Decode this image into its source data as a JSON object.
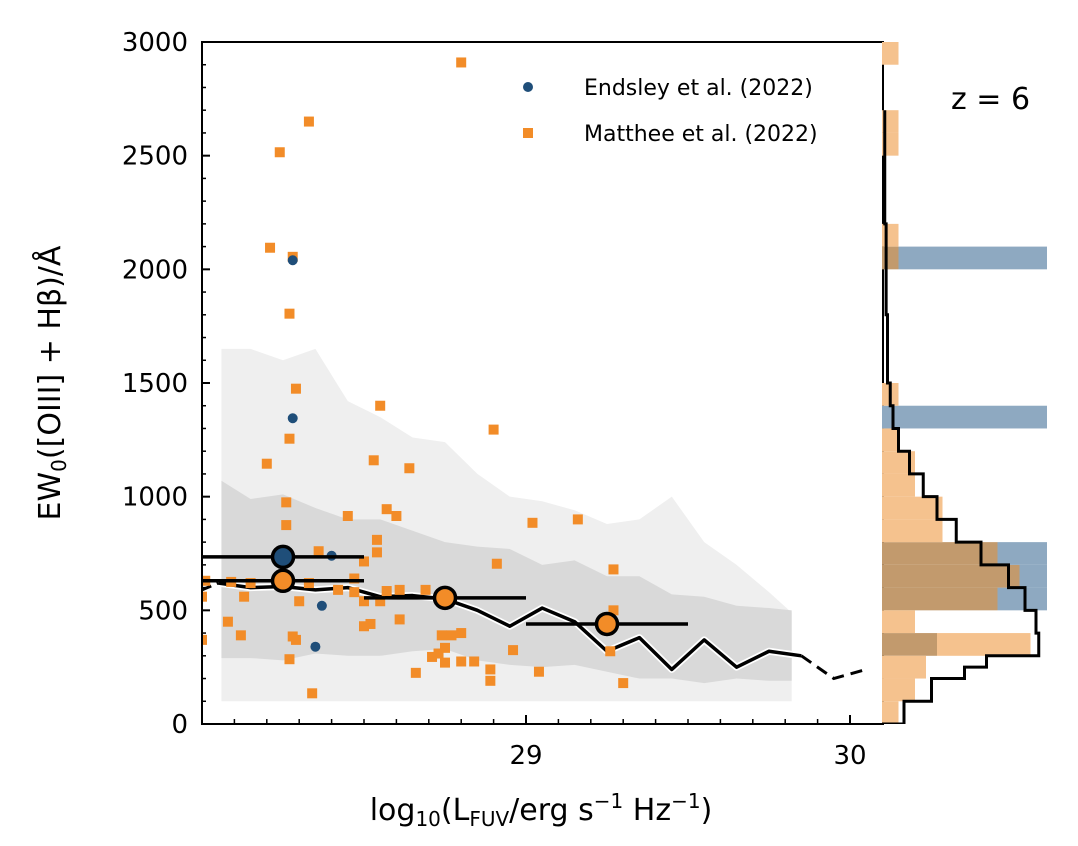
{
  "chart_data": [
    {
      "type": "scatter",
      "panel": "main",
      "xlabel": "log10(LFUV/erg s−1 Hz−1)",
      "ylabel": "EW0([OIII] + Hβ)/Å",
      "xlim": [
        28.0,
        30.1
      ],
      "ylim": [
        0,
        3000
      ],
      "xticks": [
        29,
        30
      ],
      "xtick_labels": [
        "29",
        "30"
      ],
      "yticks": [
        0,
        500,
        1000,
        1500,
        2000,
        2500,
        3000
      ],
      "ytick_labels": [
        "0",
        "500",
        "1000",
        "1500",
        "2000",
        "2500",
        "3000"
      ],
      "panel_annotation": "z = 6",
      "legend_position": "top-right",
      "series": [
        {
          "name": "Endsley et al. (2022)",
          "color": "#1f4e79",
          "marker": "circle",
          "points": [
            [
              28.28,
              2040
            ],
            [
              28.28,
              1345
            ],
            [
              28.4,
              740
            ],
            [
              28.37,
              520
            ],
            [
              28.35,
              340
            ]
          ]
        },
        {
          "name": "Matthee et al. (2022)",
          "color": "#f28c28",
          "marker": "square",
          "points": [
            [
              28.8,
              2910
            ],
            [
              28.33,
              2650
            ],
            [
              28.24,
              2515
            ],
            [
              28.21,
              2095
            ],
            [
              28.28,
              2055
            ],
            [
              28.27,
              1805
            ],
            [
              28.29,
              1475
            ],
            [
              28.55,
              1400
            ],
            [
              28.9,
              1295
            ],
            [
              28.27,
              1255
            ],
            [
              28.2,
              1145
            ],
            [
              28.53,
              1160
            ],
            [
              28.64,
              1125
            ],
            [
              28.26,
              975
            ],
            [
              28.57,
              945
            ],
            [
              28.6,
              915
            ],
            [
              28.45,
              915
            ],
            [
              29.02,
              885
            ],
            [
              29.16,
              900
            ],
            [
              28.26,
              875
            ],
            [
              28.54,
              810
            ],
            [
              28.36,
              760
            ],
            [
              28.54,
              755
            ],
            [
              28.5,
              715
            ],
            [
              28.91,
              705
            ],
            [
              29.27,
              680
            ],
            [
              28.01,
              630
            ],
            [
              28.09,
              625
            ],
            [
              28.24,
              620
            ],
            [
              28.33,
              620
            ],
            [
              28.47,
              640
            ],
            [
              28.15,
              620
            ],
            [
              28.42,
              590
            ],
            [
              28.47,
              580
            ],
            [
              28.57,
              585
            ],
            [
              28.61,
              590
            ],
            [
              28.69,
              590
            ],
            [
              28.0,
              560
            ],
            [
              28.13,
              560
            ],
            [
              28.3,
              540
            ],
            [
              28.5,
              540
            ],
            [
              28.55,
              540
            ],
            [
              29.27,
              500
            ],
            [
              28.61,
              460
            ],
            [
              28.08,
              450
            ],
            [
              28.52,
              440
            ],
            [
              28.5,
              430
            ],
            [
              28.74,
              390
            ],
            [
              28.77,
              390
            ],
            [
              28.8,
              400
            ],
            [
              28.12,
              390
            ],
            [
              28.28,
              385
            ],
            [
              28.29,
              370
            ],
            [
              28.0,
              370
            ],
            [
              28.75,
              335
            ],
            [
              28.73,
              310
            ],
            [
              28.96,
              325
            ],
            [
              29.26,
              320
            ],
            [
              28.71,
              295
            ],
            [
              28.27,
              285
            ],
            [
              28.8,
              275
            ],
            [
              28.75,
              270
            ],
            [
              28.84,
              275
            ],
            [
              28.89,
              240
            ],
            [
              29.04,
              230
            ],
            [
              28.66,
              225
            ],
            [
              28.89,
              190
            ],
            [
              29.3,
              180
            ],
            [
              28.34,
              135
            ]
          ]
        }
      ],
      "binned_medians": [
        {
          "color": "#1f4e79",
          "x": 28.25,
          "y": 735,
          "xerr": [
            28.0,
            28.5
          ]
        },
        {
          "color": "#f28c28",
          "x": 28.25,
          "y": 630,
          "xerr": [
            28.0,
            28.5
          ]
        },
        {
          "color": "#f28c28",
          "x": 28.75,
          "y": 555,
          "xerr": [
            28.5,
            29.0
          ]
        },
        {
          "color": "#f28c28",
          "x": 29.25,
          "y": 440,
          "xerr": [
            29.0,
            29.5
          ]
        }
      ],
      "model_median": {
        "x": [
          28.05,
          28.15,
          28.25,
          28.35,
          28.45,
          28.55,
          28.65,
          28.75,
          28.85,
          28.95,
          29.05,
          29.15,
          29.25,
          29.35,
          29.45,
          29.55,
          29.65,
          29.75,
          29.85
        ],
        "y": [
          620,
          600,
          605,
          590,
          600,
          560,
          565,
          550,
          500,
          430,
          510,
          450,
          320,
          380,
          240,
          370,
          250,
          320,
          300
        ],
        "dashed_x": [
          28.0,
          28.05,
          29.85,
          29.95,
          30.05
        ],
        "dashed_y": [
          590,
          620,
          300,
          200,
          240
        ]
      },
      "model_band_inner": {
        "x": [
          28.06,
          28.15,
          28.25,
          28.35,
          28.45,
          28.55,
          28.65,
          28.75,
          28.85,
          28.95,
          29.05,
          29.15,
          29.25,
          29.35,
          29.45,
          29.55,
          29.65,
          29.75,
          29.82
        ],
        "lower": [
          290,
          290,
          280,
          310,
          300,
          300,
          320,
          330,
          280,
          260,
          250,
          260,
          230,
          200,
          200,
          180,
          200,
          190,
          190
        ],
        "upper": [
          1070,
          990,
          1010,
          950,
          900,
          900,
          850,
          800,
          780,
          770,
          700,
          720,
          650,
          650,
          570,
          560,
          520,
          510,
          500
        ]
      },
      "model_band_outer": {
        "x": [
          28.06,
          28.15,
          28.25,
          28.35,
          28.45,
          28.55,
          28.65,
          28.75,
          28.85,
          28.95,
          29.05,
          29.15,
          29.25,
          29.35,
          29.45,
          29.55,
          29.65,
          29.75,
          29.82
        ],
        "lower": [
          100,
          100,
          100,
          100,
          100,
          100,
          100,
          100,
          100,
          100,
          100,
          100,
          100,
          100,
          100,
          100,
          100,
          100,
          100
        ],
        "upper": [
          1650,
          1650,
          1600,
          1650,
          1420,
          1350,
          1260,
          1240,
          1100,
          1000,
          980,
          940,
          880,
          900,
          1000,
          800,
          700,
          580,
          490
        ]
      }
    },
    {
      "type": "bar",
      "panel": "side-histogram",
      "orientation": "horizontal",
      "ylim": [
        0,
        3000
      ],
      "bin_width": 100,
      "series": [
        {
          "name": "Endsley et al. (2022)",
          "color": "#8ea9c1",
          "bins": [
            [
              300,
              0.2
            ],
            [
              500,
              0.6
            ],
            [
              600,
              0.6
            ],
            [
              700,
              0.6
            ],
            [
              1300,
              0.6
            ],
            [
              2000,
              0.6
            ]
          ]
        },
        {
          "name": "Matthee et al. (2022)",
          "color": "#f5c28e",
          "bins": [
            [
              0,
              0.06
            ],
            [
              100,
              0.12
            ],
            [
              200,
              0.16
            ],
            [
              300,
              0.54
            ],
            [
              400,
              0.12
            ],
            [
              500,
              0.42
            ],
            [
              600,
              0.5
            ],
            [
              700,
              0.42
            ],
            [
              800,
              0.22
            ],
            [
              900,
              0.22
            ],
            [
              1000,
              0.12
            ],
            [
              1100,
              0.12
            ],
            [
              1200,
              0.06
            ],
            [
              1400,
              0.06
            ],
            [
              2000,
              0.06
            ],
            [
              2100,
              0.06
            ],
            [
              2500,
              0.06
            ],
            [
              2600,
              0.06
            ],
            [
              2900,
              0.06
            ]
          ]
        }
      ],
      "overlap_color": "#c29a6d",
      "model_step": {
        "y": [
          0,
          100,
          200,
          250,
          300,
          400,
          500,
          600,
          700,
          800,
          900,
          1000,
          1100,
          1200,
          1300,
          1400,
          1500,
          1600,
          1800,
          2000,
          2200,
          2400,
          2600
        ],
        "value": [
          0.08,
          0.18,
          0.3,
          0.38,
          0.57,
          0.56,
          0.52,
          0.46,
          0.36,
          0.27,
          0.2,
          0.15,
          0.1,
          0.06,
          0.04,
          0.03,
          0.02,
          0.02,
          0.015,
          0.015,
          0.01,
          0.01,
          0.01
        ]
      }
    }
  ]
}
